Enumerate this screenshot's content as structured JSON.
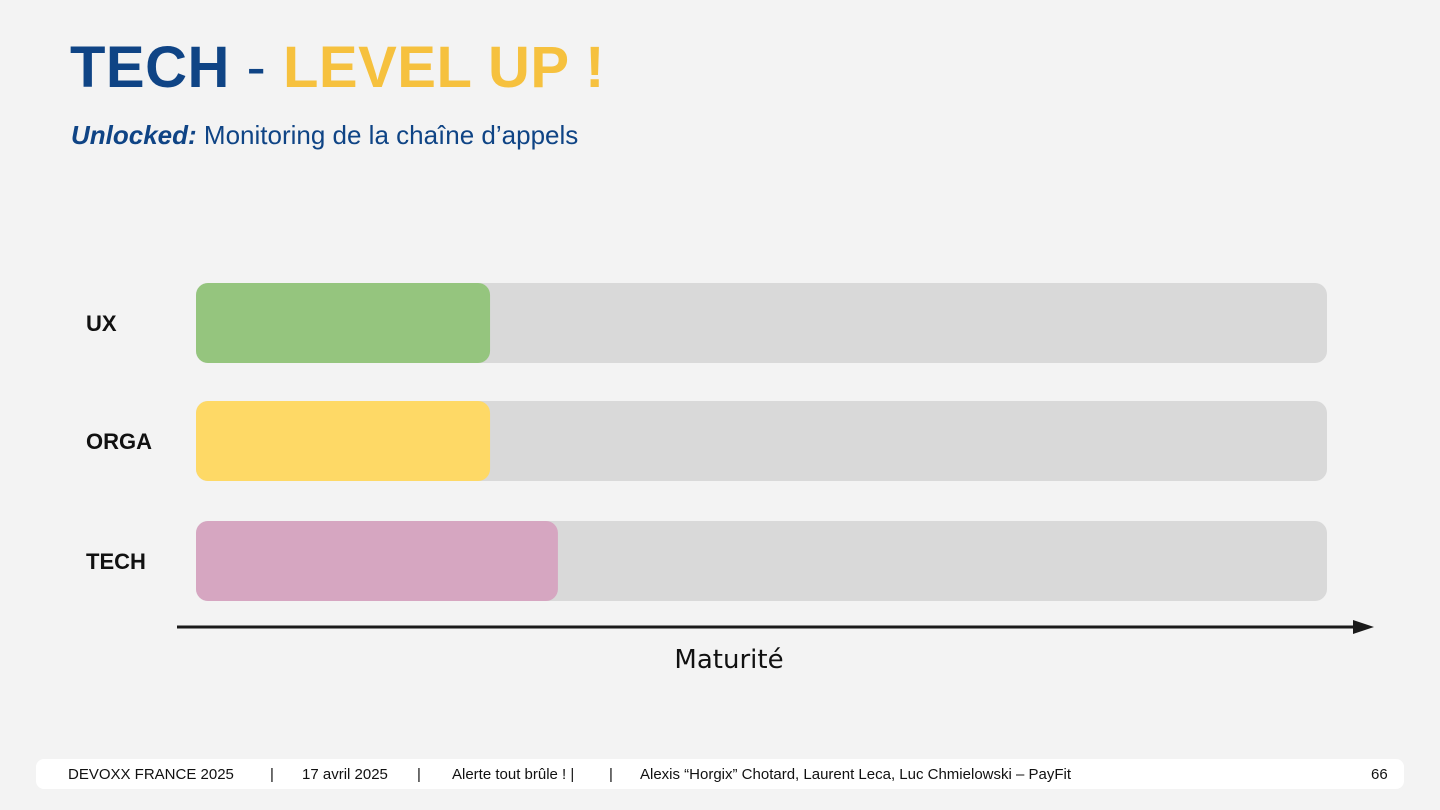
{
  "slide": {
    "title_main": "TECH",
    "title_sep": "-",
    "title_accent": "LEVEL UP !",
    "subtitle_em": "Unlocked:",
    "subtitle_rest": "Monitoring de la chaîne d’appels"
  },
  "chart_data": {
    "type": "bar",
    "orientation": "horizontal",
    "categories": [
      "UX",
      "ORGA",
      "TECH"
    ],
    "values": [
      0.26,
      0.26,
      0.32
    ],
    "xlabel": "Maturité",
    "xlim": [
      0,
      1
    ],
    "colors": [
      "#95c57e",
      "#fed966",
      "#d6a6c1"
    ],
    "track_color": "#d9d9d9",
    "grid": false
  },
  "footer": {
    "event": "DEVOXX FRANCE 2025",
    "sep": "|",
    "date": "17 avril 2025",
    "talk": "Alerte tout brûle ! |",
    "speakers": "Alexis “Horgix” Chotard, Laurent Leca, Luc Chmielowski – PayFit",
    "page": "66"
  }
}
